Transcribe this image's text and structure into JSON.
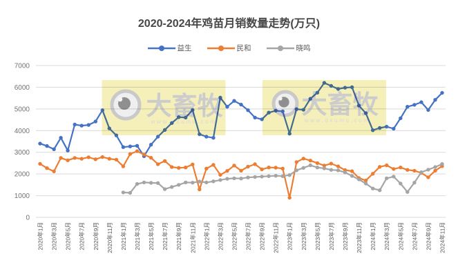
{
  "title": "2020-2024年鸡苗月销数量走势(万只)",
  "watermark": {
    "brand": "大畜牧",
    "url": "www.dxumu.com",
    "block_color": "#F5EFBA",
    "text_color": "#CCCCCC",
    "url_color": "#D8D8D8"
  },
  "axis": {
    "grid_color": "#D9D9D9",
    "label_color": "#737373",
    "x_label_color": "#595959"
  },
  "chart_data": {
    "type": "line",
    "title": "2020-2024年鸡苗月销数量走势(万只)",
    "ylim": [
      0,
      7000
    ],
    "y_ticks": [
      0,
      1000,
      2000,
      3000,
      4000,
      5000,
      6000,
      7000
    ],
    "grid": true,
    "legend_position": "top",
    "x_tick_labels": [
      "2020年1月",
      "2020年3月",
      "2020年5月",
      "2020年7月",
      "2020年9月",
      "2020年11月",
      "2021年1月",
      "2021年3月",
      "2021年5月",
      "2021年7月",
      "2021年9月",
      "2021年11月",
      "2022年1月",
      "2022年3月",
      "2022年5月",
      "2022年7月",
      "2022年9月",
      "2022年11月",
      "2023年1月",
      "2023年3月",
      "2023年5月",
      "2023年7月",
      "2023年9月",
      "2023年11月",
      "2024年1月",
      "2024年3月",
      "2024年5月",
      "2024年7月",
      "2024年9月",
      "2024年11月"
    ],
    "categories": [
      "2020年1月",
      "2020年2月",
      "2020年3月",
      "2020年4月",
      "2020年5月",
      "2020年6月",
      "2020年7月",
      "2020年8月",
      "2020年9月",
      "2020年10月",
      "2020年11月",
      "2020年12月",
      "2021年1月",
      "2021年2月",
      "2021年3月",
      "2021年4月",
      "2021年5月",
      "2021年6月",
      "2021年7月",
      "2021年8月",
      "2021年9月",
      "2021年10月",
      "2021年11月",
      "2021年12月",
      "2022年1月",
      "2022年2月",
      "2022年3月",
      "2022年4月",
      "2022年5月",
      "2022年6月",
      "2022年7月",
      "2022年8月",
      "2022年9月",
      "2022年10月",
      "2022年11月",
      "2022年12月",
      "2023年1月",
      "2023年2月",
      "2023年3月",
      "2023年4月",
      "2023年5月",
      "2023年6月",
      "2023年7月",
      "2023年8月",
      "2023年9月",
      "2023年10月",
      "2023年11月",
      "2023年12月",
      "2024年1月",
      "2024年2月",
      "2024年3月",
      "2024年4月",
      "2024年5月",
      "2024年6月",
      "2024年7月",
      "2024年8月",
      "2024年9月",
      "2024年10月",
      "2024年11月"
    ],
    "series": [
      {
        "name": "益生",
        "color": "#4472C4",
        "values": [
          3400,
          3290,
          3140,
          3670,
          3080,
          4280,
          4230,
          4260,
          4420,
          4940,
          4100,
          3780,
          3240,
          3270,
          3300,
          2820,
          3350,
          3720,
          4030,
          4350,
          4620,
          4600,
          4950,
          3830,
          3720,
          3670,
          5520,
          5100,
          5370,
          5200,
          4940,
          4600,
          4520,
          4830,
          4920,
          4890,
          3860,
          4990,
          4960,
          5470,
          5750,
          6200,
          6060,
          5920,
          5980,
          6000,
          5150,
          4800,
          4020,
          4120,
          4180,
          4090,
          4570,
          5100,
          5190,
          5310,
          4950,
          5420,
          5740
        ]
      },
      {
        "name": "民和",
        "color": "#ED7D31",
        "values": [
          2470,
          2270,
          2120,
          2740,
          2630,
          2740,
          2700,
          2770,
          2680,
          2780,
          2700,
          2660,
          2350,
          2920,
          3050,
          2900,
          2750,
          2450,
          2600,
          2320,
          2280,
          2300,
          2440,
          1290,
          2250,
          2420,
          1960,
          2140,
          2390,
          2150,
          2340,
          2450,
          2210,
          2300,
          2290,
          2250,
          905,
          2550,
          2710,
          2620,
          2500,
          2390,
          2480,
          2350,
          2180,
          2130,
          1810,
          1700,
          2010,
          2330,
          2400,
          2230,
          2300,
          2190,
          2150,
          2050,
          1850,
          2150,
          2360
        ]
      },
      {
        "name": "晓鸣",
        "color": "#A5A5A5",
        "values": [
          null,
          null,
          null,
          null,
          null,
          null,
          null,
          null,
          null,
          null,
          null,
          null,
          1150,
          1130,
          1540,
          1610,
          1590,
          1580,
          1300,
          1400,
          1500,
          1610,
          1600,
          1650,
          1610,
          1660,
          1720,
          1780,
          1800,
          1790,
          1840,
          1860,
          1880,
          1900,
          1920,
          1900,
          1950,
          2170,
          2280,
          2400,
          2300,
          2260,
          2190,
          2170,
          2070,
          1910,
          1750,
          1560,
          1330,
          1250,
          1800,
          1880,
          1560,
          1170,
          1600,
          2080,
          2200,
          2320,
          2460
        ]
      }
    ]
  }
}
